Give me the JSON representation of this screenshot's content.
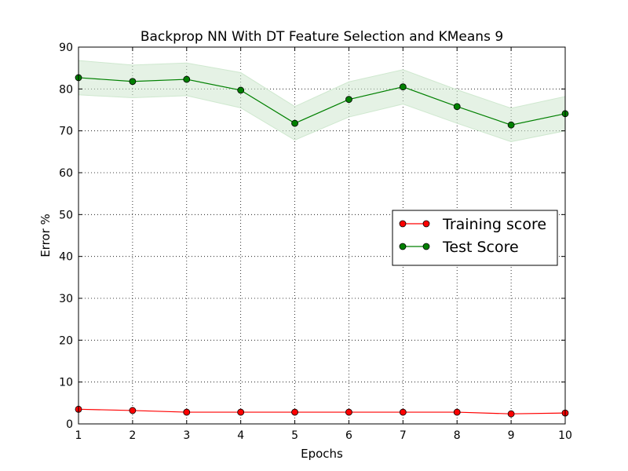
{
  "chart_data": {
    "type": "line",
    "title": "Backprop NN With DT Feature Selection and KMeans 9",
    "xlabel": "Epochs",
    "ylabel": "Error %",
    "x": [
      1,
      2,
      3,
      4,
      5,
      6,
      7,
      8,
      9,
      10
    ],
    "xlim": [
      1,
      10
    ],
    "ylim": [
      0,
      90
    ],
    "xticks": [
      "1",
      "2",
      "3",
      "4",
      "5",
      "6",
      "7",
      "8",
      "9",
      "10"
    ],
    "yticks": [
      "0",
      "10",
      "20",
      "30",
      "40",
      "50",
      "60",
      "70",
      "80",
      "90"
    ],
    "grid": true,
    "legend_position": "center-right",
    "series": [
      {
        "name": "Training score",
        "color": "#ff0000",
        "values": [
          3.5,
          3.2,
          2.8,
          2.8,
          2.8,
          2.8,
          2.8,
          2.8,
          2.4,
          2.6
        ]
      },
      {
        "name": "Test Score",
        "color": "#008000",
        "band_color": "#cfe8cf",
        "values": [
          82.7,
          81.8,
          82.3,
          79.7,
          71.8,
          77.5,
          80.5,
          75.8,
          71.4,
          74.1
        ],
        "band_upper": [
          86.8,
          85.7,
          86.2,
          83.9,
          75.8,
          81.7,
          84.6,
          79.8,
          75.4,
          78.2
        ],
        "band_lower": [
          78.6,
          77.9,
          78.4,
          75.5,
          67.8,
          73.3,
          76.4,
          71.8,
          67.4,
          70.0
        ]
      }
    ]
  }
}
